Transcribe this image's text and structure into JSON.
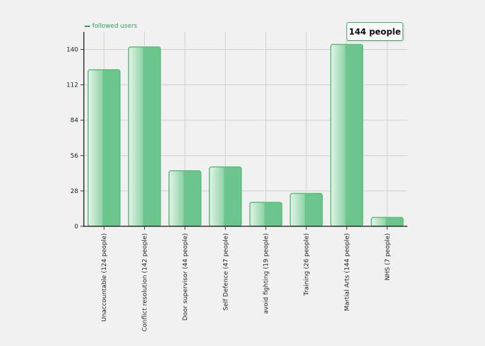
{
  "legend": {
    "label": "followed users",
    "color": "#2aa35a"
  },
  "tooltip": {
    "text": "144 people"
  },
  "colors": {
    "bar_fill": "#6cc58c",
    "bar_light": "#cdebd7",
    "bar_stroke": "#5bbd7c",
    "axis": "#333333",
    "grid": "#cfcfcf"
  },
  "chart_data": {
    "type": "bar",
    "categories": [
      "Unaccountable (124 people)",
      "Conflict resolution (142 people)",
      "Door supervisor (44 people)",
      "Self Defence (47 people)",
      "avoid fighting (19 people)",
      "Training (26 people)",
      "Martial Arts (144 people)",
      "NHS (7 people)"
    ],
    "series": [
      {
        "name": "followed users",
        "values": [
          124,
          142,
          44,
          47,
          19,
          26,
          144,
          7
        ]
      }
    ],
    "yticks": [
      0,
      28,
      56,
      84,
      112,
      140
    ],
    "ylim": [
      0,
      154
    ],
    "grid": true,
    "legend_position": "top-left"
  }
}
